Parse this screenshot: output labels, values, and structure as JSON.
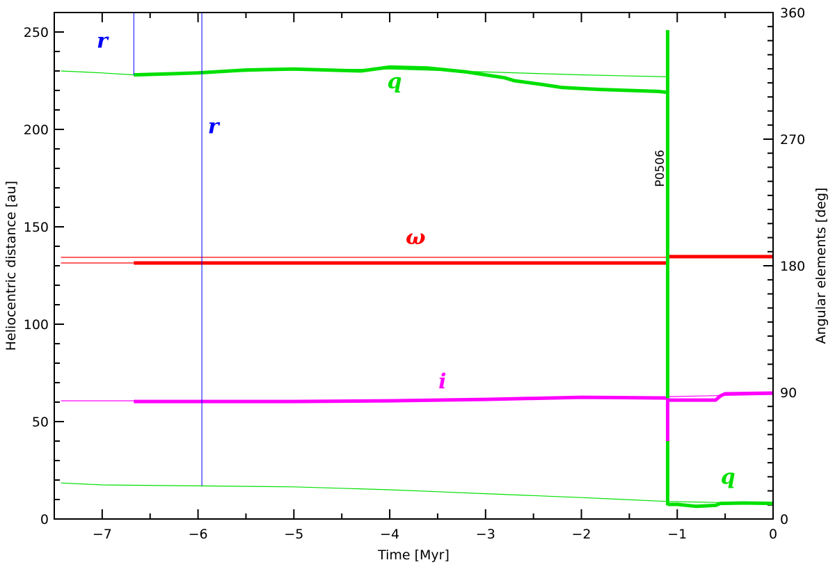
{
  "chart_data": {
    "type": "line",
    "xlabel": "Time [Myr]",
    "ylabel_left": "Heliocentric distance [au]",
    "ylabel_right": "Angular elements [deg]",
    "xlim": [
      -7.5,
      0
    ],
    "ylim_left": [
      0,
      260
    ],
    "ylim_right": [
      0,
      360
    ],
    "x_ticks": [
      -7,
      -6,
      -5,
      -4,
      -3,
      -2,
      -1,
      0
    ],
    "y_ticks_left": [
      0,
      50,
      100,
      150,
      200,
      250
    ],
    "y_ticks_right": [
      0,
      90,
      180,
      270,
      360
    ],
    "colors": {
      "q": "#00e000",
      "r": "#0000ff",
      "omega": "#ff0000",
      "i": "#ff00ff",
      "axes": "#000000"
    },
    "series": [
      {
        "name": "q",
        "axis": "left",
        "style": "thin",
        "color": "#00e000",
        "x": [
          -7.43,
          -7.0,
          -6.67,
          -6.0,
          -5.0,
          -4.0,
          -3.0,
          -2.0,
          -1.1
        ],
        "y": [
          230,
          229,
          228,
          229,
          230.5,
          231,
          229.5,
          228,
          227
        ]
      },
      {
        "name": "q",
        "axis": "left",
        "style": "thick",
        "color": "#00e000",
        "x": [
          -6.67,
          -6.0,
          -5.5,
          -5.0,
          -4.3,
          -4.0,
          -3.6,
          -3.2,
          -2.8,
          -2.7,
          -2.4,
          -2.2,
          -2.0,
          -1.8,
          -1.5,
          -1.2,
          -1.1
        ],
        "y": [
          228,
          229,
          230.5,
          231,
          230,
          232,
          231.5,
          229.5,
          226.5,
          225,
          223,
          221.5,
          221,
          220.5,
          220,
          219.5,
          219
        ]
      },
      {
        "name": "q",
        "axis": "left",
        "style": "thin",
        "color": "#00e000",
        "x": [
          -7.43,
          -7.0,
          -6.0,
          -5.0,
          -4.0,
          -3.0,
          -2.0,
          -1.1,
          -0.6,
          0
        ],
        "y": [
          18.5,
          17.5,
          17,
          16.5,
          15,
          13,
          11,
          9,
          8.5,
          8
        ]
      },
      {
        "name": "q",
        "axis": "left",
        "style": "thick",
        "color": "#00e000",
        "x": [
          -1.1,
          -1.0,
          -0.8,
          -0.6,
          -0.55,
          -0.3,
          0
        ],
        "y": [
          7.5,
          7.5,
          6.5,
          7,
          8,
          8.2,
          8
        ]
      },
      {
        "name": "omega",
        "axis": "right",
        "style": "thin",
        "color": "#ff0000",
        "x": [
          -7.43,
          0
        ],
        "y": [
          186,
          186
        ]
      },
      {
        "name": "omega",
        "axis": "right",
        "style": "thin",
        "color": "#ff0000",
        "x": [
          -7.43,
          -6.67
        ],
        "y": [
          182,
          182
        ]
      },
      {
        "name": "omega",
        "axis": "right",
        "style": "thick",
        "color": "#ff0000",
        "x": [
          -6.67,
          -1.1
        ],
        "y": [
          182,
          182
        ]
      },
      {
        "name": "omega",
        "axis": "right",
        "style": "thick",
        "color": "#ff0000",
        "x": [
          -1.1,
          0
        ],
        "y": [
          186.5,
          186.5
        ]
      },
      {
        "name": "i",
        "axis": "right",
        "style": "thin",
        "color": "#ff00ff",
        "x": [
          -7.43,
          -6.67,
          -5.0,
          -3.0,
          -1.1,
          0
        ],
        "y": [
          84,
          84,
          84,
          85,
          87,
          88.5
        ]
      },
      {
        "name": "i",
        "axis": "right",
        "style": "thick",
        "color": "#ff00ff",
        "x": [
          -6.67,
          -5.0,
          -4.0,
          -3.0,
          -2.0,
          -1.1
        ],
        "y": [
          83.5,
          83.5,
          84,
          85,
          86.5,
          86
        ]
      },
      {
        "name": "i",
        "axis": "right",
        "style": "thick",
        "color": "#ff00ff",
        "x": [
          -1.1,
          -0.9,
          -0.6,
          -0.55,
          -0.5,
          0
        ],
        "y": [
          84.5,
          84.5,
          84.5,
          87.5,
          89,
          89.5
        ]
      }
    ],
    "vertical_lines": [
      {
        "x": -6.67,
        "y_from": 228,
        "y_to": 260,
        "color": "#0000ff",
        "width": 1
      },
      {
        "x": -5.96,
        "y_from": 17,
        "y_to": 260,
        "color": "#0000ff",
        "width": 1
      },
      {
        "x": -1.1,
        "y_from": 7,
        "y_to": 251,
        "color": "#00e000",
        "width": 5
      },
      {
        "x": -1.1,
        "y_from": 40,
        "y_to": 62,
        "color": "#ff00ff",
        "width": 5
      }
    ],
    "annotations": [
      {
        "text": "r",
        "x": -7.0,
        "y": 242,
        "color": "#0000ff",
        "kind": "italic"
      },
      {
        "text": "r",
        "x": -5.84,
        "y": 198,
        "color": "#0000ff",
        "kind": "italic"
      },
      {
        "text": "q",
        "x": -3.95,
        "y": 221,
        "color": "#00e000",
        "kind": "italic"
      },
      {
        "text": "ω",
        "x": -3.73,
        "y": 141,
        "color": "#ff0000",
        "kind": "italic"
      },
      {
        "text": "i",
        "x": -3.45,
        "y": 67,
        "color": "#ff00ff",
        "kind": "italic"
      },
      {
        "text": "q",
        "x": -0.47,
        "y": 18,
        "color": "#00e000",
        "kind": "italic"
      },
      {
        "text": "P0506",
        "x": -1.14,
        "y": 180,
        "color": "#000000",
        "kind": "rotated"
      }
    ]
  }
}
